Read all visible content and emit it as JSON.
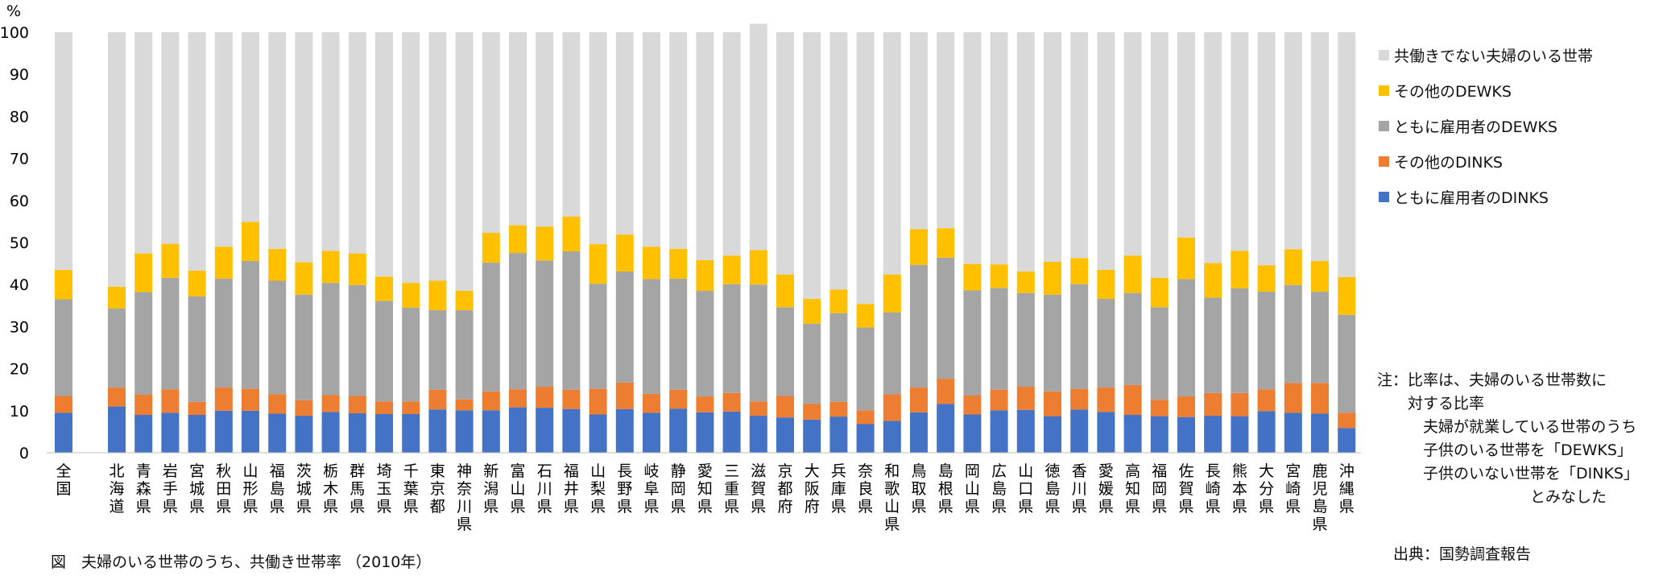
{
  "chart_data": {
    "type": "bar",
    "stacked": true,
    "title": "図　夫婦のいる世帯のうち、共働き世帯率 （2010年）",
    "ylabel": "%",
    "ylim": [
      0,
      100
    ],
    "yticks": [
      0,
      10,
      20,
      30,
      40,
      50,
      60,
      70,
      80,
      90,
      100
    ],
    "grid": false,
    "legend_position": "right",
    "categories": [
      "全国",
      "北海道",
      "青森県",
      "岩手県",
      "宮城県",
      "秋田県",
      "山形県",
      "福島県",
      "茨城県",
      "栃木県",
      "群馬県",
      "埼玉県",
      "千葉県",
      "東京都",
      "神奈川県",
      "新潟県",
      "富山県",
      "石川県",
      "福井県",
      "山梨県",
      "長野県",
      "岐阜県",
      "静岡県",
      "愛知県",
      "三重県",
      "滋賀県",
      "京都府",
      "大阪府",
      "兵庫県",
      "奈良県",
      "和歌山県",
      "鳥取県",
      "島根県",
      "岡山県",
      "広島県",
      "山口県",
      "徳島県",
      "香川県",
      "愛媛県",
      "高知県",
      "福岡県",
      "佐賀県",
      "長崎県",
      "熊本県",
      "大分県",
      "宮崎県",
      "鹿児島県",
      "沖縄県"
    ],
    "series": [
      {
        "name": "ともに雇用者のDINKS",
        "color": "#4472c4",
        "values": [
          9.5,
          11,
          9,
          9.5,
          9,
          10,
          10,
          9.3,
          8.8,
          9.7,
          9.4,
          9.2,
          9.2,
          10.3,
          10.1,
          10.1,
          10.8,
          10.7,
          10.4,
          9.1,
          10.4,
          9.5,
          10.5,
          9.6,
          9.8,
          8.8,
          8.4,
          7.9,
          8.6,
          6.8,
          7.6,
          9.6,
          11.6,
          9.1,
          10.1,
          10.2,
          8.7,
          10.3,
          9.7,
          9,
          8.7,
          8.5,
          8.8,
          8.7,
          9.9,
          9.5,
          9.3,
          5.9
        ]
      },
      {
        "name": "その他のDINKS",
        "color": "#ed7d31",
        "values": [
          4,
          4.5,
          4.8,
          5.6,
          3.1,
          5.5,
          5.2,
          4.6,
          3.7,
          4,
          4.1,
          3,
          3,
          4.7,
          2.6,
          4.5,
          4.3,
          5,
          4.6,
          6.1,
          6.3,
          4.5,
          4.5,
          3.8,
          4.4,
          3.4,
          5.1,
          3.7,
          3.5,
          3.3,
          6.3,
          5.9,
          6,
          4.5,
          4.9,
          5.5,
          5.9,
          4.9,
          5.8,
          7.1,
          3.9,
          4.9,
          5.4,
          5.5,
          5.2,
          7.1,
          7.3,
          3.6
        ]
      },
      {
        "name": "ともに雇用者のDEWKS",
        "color": "#a5a5a5",
        "values": [
          23,
          18.8,
          24.4,
          26.5,
          25.1,
          25.9,
          30.4,
          27,
          25.1,
          26.7,
          26.4,
          23.9,
          22.3,
          18.9,
          21.2,
          30.6,
          32.4,
          30,
          32.9,
          25,
          26.4,
          27.3,
          26.4,
          25.1,
          25.9,
          27.8,
          21.1,
          19.1,
          21.1,
          19.7,
          19.5,
          29.2,
          28.8,
          25,
          24.2,
          22.3,
          23,
          24.9,
          21.1,
          21.9,
          22,
          27.9,
          22.7,
          24.9,
          23.2,
          23.3,
          21.7,
          23.3
        ]
      },
      {
        "name": "その他のDEWKS",
        "color": "#ffc000",
        "values": [
          7,
          5.2,
          9.2,
          8.1,
          6.1,
          7.6,
          9.3,
          7.6,
          7.7,
          7.6,
          7.5,
          5.8,
          5.9,
          7,
          4.6,
          7.1,
          6.6,
          8.1,
          8.3,
          9.4,
          8.8,
          7.7,
          7.1,
          7.3,
          6.8,
          8.2,
          7.8,
          5.9,
          5.6,
          5.6,
          9,
          8.5,
          7,
          6.3,
          5.6,
          5.1,
          7.8,
          6.2,
          6.9,
          8.9,
          7,
          9.9,
          8.2,
          8.9,
          6.3,
          8.5,
          7.3,
          9
        ]
      },
      {
        "name": "共働きでない夫婦のいる世帯",
        "color": "#d9d9d9",
        "values": [
          56.5,
          60.5,
          52.6,
          50.3,
          56.7,
          51,
          45.1,
          51.5,
          54.7,
          52,
          52.6,
          58.1,
          59.6,
          59.1,
          61.5,
          47.7,
          45.9,
          46.2,
          43.8,
          50.4,
          48.1,
          51,
          51.5,
          54.2,
          53.1,
          53.8,
          57.6,
          63.4,
          61.2,
          64.6,
          57.6,
          46.8,
          46.6,
          55.1,
          55.2,
          56.9,
          54.6,
          53.7,
          56.5,
          53.1,
          58.4,
          48.8,
          54.9,
          52,
          55.4,
          51.6,
          54.4,
          58.2
        ]
      }
    ]
  },
  "note": {
    "lines": [
      "注：比率は、夫婦のいる世帯数に",
      "　　対する比率",
      "　　　夫婦が就業している世帯のうち",
      "　　　子供のいる世帯を「DEWKS」",
      "　　　子供のいない世帯を「DINKS」",
      "　　　　　　　　　　とみなした"
    ]
  },
  "source": "出典：国勢調査報告"
}
